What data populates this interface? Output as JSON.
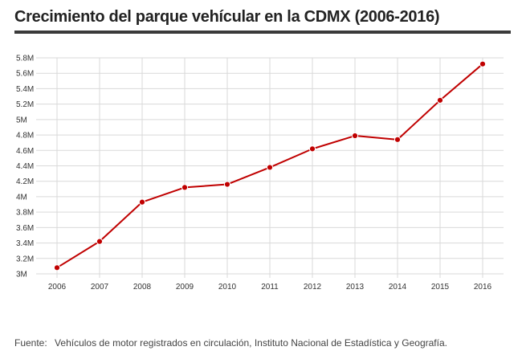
{
  "title": "Crecimiento del parque vehícular en la CDMX (2006-2016)",
  "source": {
    "label": "Fuente:",
    "text": "Vehículos de motor registrados en circulación, Instituto Nacional de Estadística y Geografía."
  },
  "colors": {
    "series": "#c00000",
    "grid": "#d9d9d9",
    "rule": "#3a3a3a"
  },
  "chart_data": {
    "type": "line",
    "title": "Crecimiento del parque vehícular en la CDMX (2006-2016)",
    "xlabel": "",
    "ylabel": "",
    "x": [
      "2006",
      "2007",
      "2008",
      "2009",
      "2010",
      "2011",
      "2012",
      "2013",
      "2014",
      "2015",
      "2016"
    ],
    "series": [
      {
        "values": [
          3.08,
          3.42,
          3.93,
          4.12,
          4.16,
          4.38,
          4.62,
          4.79,
          4.74,
          5.25,
          5.72
        ]
      }
    ],
    "ylim": [
      3.0,
      5.8
    ],
    "yticks": [
      3.0,
      3.2,
      3.4,
      3.6,
      3.8,
      4.0,
      4.2,
      4.4,
      4.6,
      4.8,
      5.0,
      5.2,
      5.4,
      5.6,
      5.8
    ],
    "ytick_labels": [
      "3M",
      "3.2M",
      "3.4M",
      "3.6M",
      "3.8M",
      "4M",
      "4.2M",
      "4.4M",
      "4.6M",
      "4.8M",
      "5M",
      "5.2M",
      "5.4M",
      "5.6M",
      "5.8M"
    ],
    "grid": true,
    "legend": "none"
  }
}
